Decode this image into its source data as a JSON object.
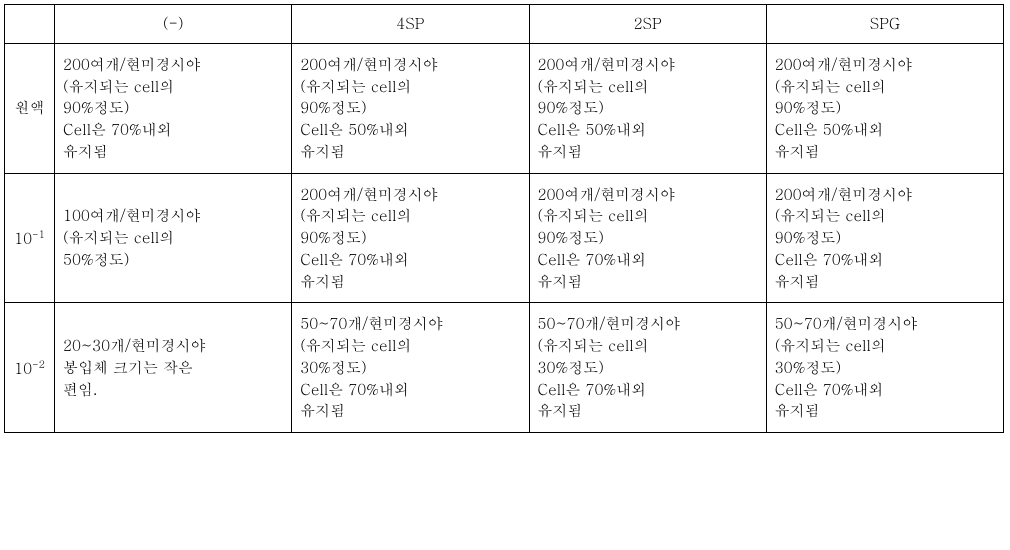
{
  "table": {
    "columns": {
      "c0": "",
      "c1": "(-)",
      "c2": "4SP",
      "c3": "2SP",
      "c4": "SPG"
    },
    "rows": {
      "r1": {
        "label": "원액",
        "c1": "200여개/현미경시야\n (유지되는 cell의\n90%정도)\nCell은 70%내외\n유지됨",
        "c2": "200여개/현미경시야\n(유지되는 cell의\n90%정도)\nCell은 50%내외\n유지됨",
        "c3": "200여개/현미경시야\n(유지되는 cell의\n90%정도)\nCell은 50%내외\n유지됨",
        "c4": "200여개/현미경시야\n (유지되는 cell의\n90%정도)\nCell은 50%내외\n유지됨"
      },
      "r2": {
        "label_base": "10",
        "label_exp": "-1",
        "c1": "100여개/현미경시야\n(유지되는 cell의\n50%정도)",
        "c2": "200여개/현미경시야\n(유지되는 cell의\n90%정도)\nCell은 70%내외\n유지됨",
        "c3": "200여개/현미경시야\n(유지되는 cell의\n90%정도)\nCell은 70%내외\n유지됨",
        "c4": "200여개/현미경시야\n (유지되는 cell의\n90%정도)\nCell은 70%내외\n유지됨"
      },
      "r3": {
        "label_base": "10",
        "label_exp": "-2",
        "c1": "20~30개/현미경시야\n봉입체 크기는 작은\n편임.",
        "c2": "50~70개/현미경시야\n(유지되는 cell의\n30%정도)\nCell은 70%내외\n유지됨",
        "c3": "50~70개/현미경시야\n(유지되는 cell의\n30%정도)\nCell은 70%내외\n유지됨",
        "c4": "50~70개/현미경시야\n(유지되는 cell의\n30%정도)\nCell은 70%내외\n유지됨"
      }
    }
  }
}
